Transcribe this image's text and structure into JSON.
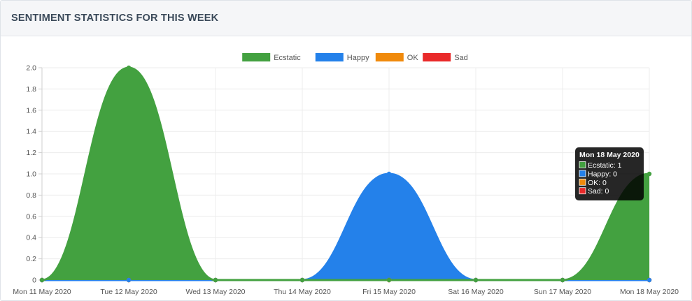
{
  "header": {
    "title": "SENTIMENT STATISTICS FOR THIS WEEK"
  },
  "chart_data": {
    "type": "area",
    "categories": [
      "Mon 11 May 2020",
      "Tue 12 May 2020",
      "Wed 13 May 2020",
      "Thu 14 May 2020",
      "Fri 15 May 2020",
      "Sat 16 May 2020",
      "Sun 17 May 2020",
      "Mon 18 May 2020"
    ],
    "series": [
      {
        "name": "Ecstatic",
        "color": "#43a140",
        "values": [
          0,
          2,
          0,
          0,
          0,
          0,
          0,
          1
        ]
      },
      {
        "name": "Happy",
        "color": "#2481ea",
        "values": [
          0,
          0,
          0,
          0,
          1,
          0,
          0,
          0
        ]
      },
      {
        "name": "OK",
        "color": "#f08a0c",
        "values": [
          0,
          0,
          0,
          0,
          0,
          0,
          0,
          0
        ]
      },
      {
        "name": "Sad",
        "color": "#e92a2a",
        "values": [
          0,
          0,
          0,
          0,
          0,
          0,
          0,
          0
        ]
      }
    ],
    "y_ticks": [
      "0",
      "0.2",
      "0.4",
      "0.6",
      "0.8",
      "1.0",
      "1.2",
      "1.4",
      "1.6",
      "1.8",
      "2.0"
    ],
    "ylim": [
      0,
      2
    ],
    "grid": true,
    "legend": "top-center",
    "tooltip": {
      "title": "Mon 18 May 2020",
      "lines": [
        "Ecstatic: 1",
        "Happy: 0",
        "OK: 0",
        "Sad: 0"
      ]
    }
  }
}
